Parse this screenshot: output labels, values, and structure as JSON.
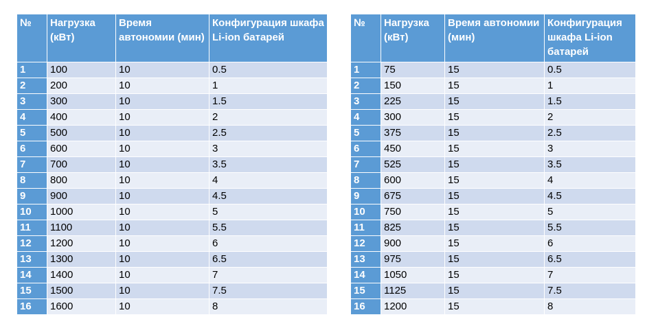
{
  "left_table": {
    "headers": [
      "№",
      "Нагрузка (кВт)",
      "Время автономии (мин)",
      "Конфигурация шкафа Li-ion батарей"
    ],
    "rows": [
      [
        "1",
        "100",
        "10",
        "0.5"
      ],
      [
        "2",
        "200",
        "10",
        "1"
      ],
      [
        "3",
        "300",
        "10",
        "1.5"
      ],
      [
        "4",
        "400",
        "10",
        "2"
      ],
      [
        "5",
        "500",
        "10",
        "2.5"
      ],
      [
        "6",
        "600",
        "10",
        "3"
      ],
      [
        "7",
        "700",
        "10",
        "3.5"
      ],
      [
        "8",
        "800",
        "10",
        "4"
      ],
      [
        "9",
        "900",
        "10",
        "4.5"
      ],
      [
        "10",
        "1000",
        "10",
        "5"
      ],
      [
        "11",
        "1100",
        "10",
        "5.5"
      ],
      [
        "12",
        "1200",
        "10",
        "6"
      ],
      [
        "13",
        "1300",
        "10",
        "6.5"
      ],
      [
        "14",
        "1400",
        "10",
        "7"
      ],
      [
        "15",
        "1500",
        "10",
        "7.5"
      ],
      [
        "16",
        "1600",
        "10",
        "8"
      ]
    ]
  },
  "right_table": {
    "headers": [
      "№",
      "Нагрузка (кВт)",
      "Время автономии (мин)",
      "Конфигурация шкафа Li-ion батарей"
    ],
    "rows": [
      [
        "1",
        "75",
        "15",
        "0.5"
      ],
      [
        "2",
        "150",
        "15",
        "1"
      ],
      [
        "3",
        "225",
        "15",
        "1.5"
      ],
      [
        "4",
        "300",
        "15",
        "2"
      ],
      [
        "5",
        "375",
        "15",
        "2.5"
      ],
      [
        "6",
        "450",
        "15",
        "3"
      ],
      [
        "7",
        "525",
        "15",
        "3.5"
      ],
      [
        "8",
        "600",
        "15",
        "4"
      ],
      [
        "9",
        "675",
        "15",
        "4.5"
      ],
      [
        "10",
        "750",
        "15",
        "5"
      ],
      [
        "11",
        "825",
        "15",
        "5.5"
      ],
      [
        "12",
        "900",
        "15",
        "6"
      ],
      [
        "13",
        "975",
        "15",
        "6.5"
      ],
      [
        "14",
        "1050",
        "15",
        "7"
      ],
      [
        "15",
        "1125",
        "15",
        "7.5"
      ],
      [
        "16",
        "1200",
        "15",
        "8"
      ]
    ]
  },
  "colors": {
    "header_bg": "#5b9bd5",
    "row_odd": "#cfdaee",
    "row_even": "#e9eef7"
  }
}
